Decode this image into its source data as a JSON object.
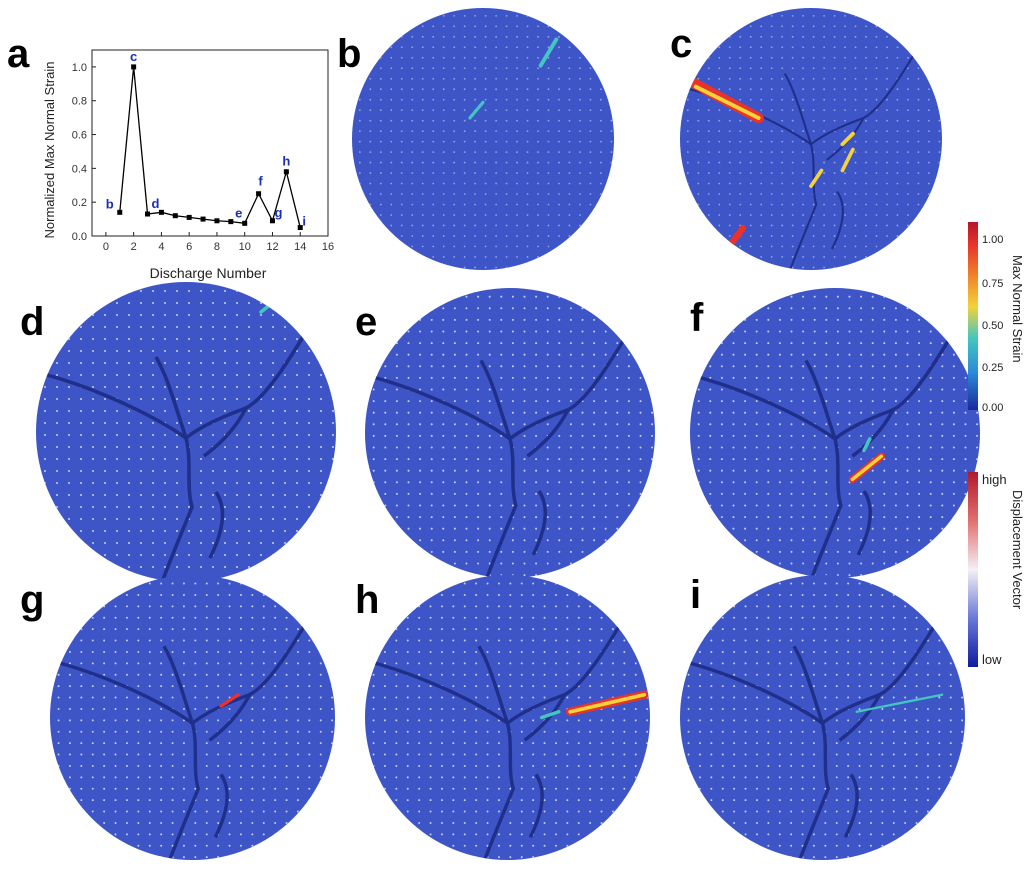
{
  "chart_data": {
    "type": "line",
    "xlabel": "Discharge Number",
    "ylabel": "Normalized Max Normal Strain",
    "xlim": [
      -1,
      16
    ],
    "ylim": [
      0,
      1.1
    ],
    "xticks": [
      0,
      2,
      4,
      6,
      8,
      10,
      12,
      14,
      16
    ],
    "yticks": [
      0.0,
      0.2,
      0.4,
      0.6,
      0.8,
      1.0
    ],
    "x": [
      1,
      2,
      3,
      4,
      5,
      6,
      7,
      8,
      9,
      10,
      11,
      12,
      13,
      14
    ],
    "y": [
      0.14,
      1.0,
      0.13,
      0.14,
      0.12,
      0.11,
      0.1,
      0.09,
      0.085,
      0.075,
      0.25,
      0.09,
      0.38,
      0.05
    ],
    "point_labels": [
      {
        "x": 1,
        "y": 0.14,
        "text": "b"
      },
      {
        "x": 2,
        "y": 1.0,
        "text": "c"
      },
      {
        "x": 3,
        "y": 0.13,
        "text": "d"
      },
      {
        "x": 10,
        "y": 0.075,
        "text": "e"
      },
      {
        "x": 11,
        "y": 0.25,
        "text": "f"
      },
      {
        "x": 12,
        "y": 0.09,
        "text": "g"
      },
      {
        "x": 13,
        "y": 0.38,
        "text": "h"
      },
      {
        "x": 14,
        "y": 0.05,
        "text": "i"
      }
    ],
    "grid": false,
    "colors": {
      "line": "#000000",
      "label": "#1a2fb5"
    }
  },
  "panels": {
    "a": "a",
    "b": "b",
    "c": "c",
    "d": "d",
    "e": "e",
    "f": "f",
    "g": "g",
    "h": "h",
    "i": "i"
  },
  "strain_colorbar": {
    "title": "Max Normal Strain",
    "ticks": [
      "1.00",
      "0.75",
      "0.50",
      "0.25",
      "0.00"
    ]
  },
  "displacement_colorbar": {
    "title": "Displacement Vector",
    "high_label": "high",
    "low_label": "low"
  },
  "image_colors": {
    "background": "#3d55c6",
    "crack": "#1f2f8a",
    "hot": "#e8322a",
    "warm": "#f3d23a",
    "cool": "#43c6c0"
  }
}
